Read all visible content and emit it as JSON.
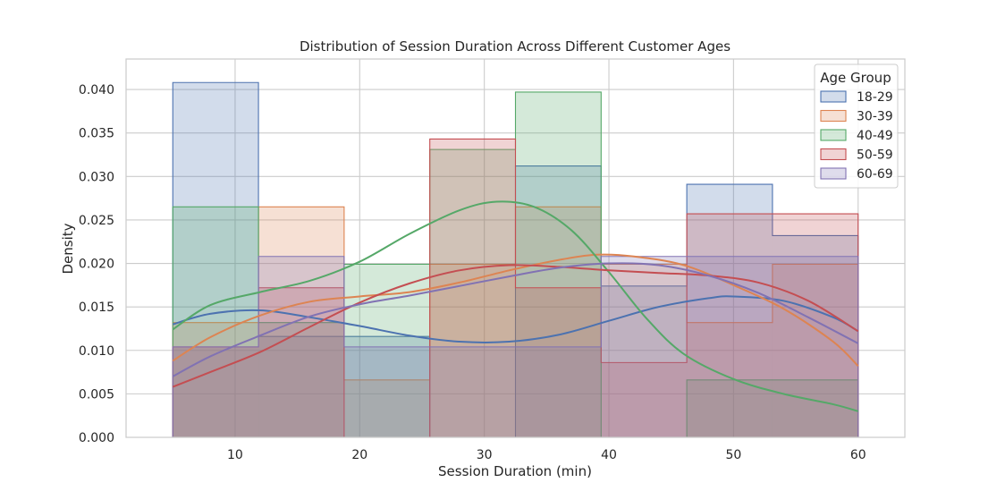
{
  "chart_data": {
    "type": "histogram",
    "title": "Distribution of Session Duration Across Different Customer Ages",
    "xlabel": "Session Duration (min)",
    "ylabel": "Density",
    "xlim": [
      1.25,
      63.75
    ],
    "ylim": [
      0,
      0.0435
    ],
    "xticks": [
      10,
      20,
      30,
      40,
      50,
      60
    ],
    "yticks": [
      0.0,
      0.005,
      0.01,
      0.015,
      0.02,
      0.025,
      0.03,
      0.035,
      0.04
    ],
    "ytick_labels": [
      "0.000",
      "0.005",
      "0.010",
      "0.015",
      "0.020",
      "0.025",
      "0.030",
      "0.035",
      "0.040"
    ],
    "grid": true,
    "bin_edges": [
      5,
      11.875,
      18.75,
      25.625,
      32.5,
      39.375,
      46.25,
      53.125,
      60
    ],
    "legend": {
      "title": "Age Group",
      "position": "upper-right"
    },
    "series": [
      {
        "name": "18-29",
        "color": "#4c72b0",
        "values": [
          0.0408,
          0.0116,
          0.0116,
          0.0,
          0.0312,
          0.0174,
          0.0291,
          0.0232
        ],
        "kde": [
          [
            5,
            0.013
          ],
          [
            8,
            0.0142
          ],
          [
            12,
            0.0146
          ],
          [
            16,
            0.0138
          ],
          [
            20,
            0.0128
          ],
          [
            24,
            0.0117
          ],
          [
            28,
            0.011
          ],
          [
            32,
            0.011
          ],
          [
            36,
            0.0118
          ],
          [
            40,
            0.0134
          ],
          [
            44,
            0.015
          ],
          [
            48,
            0.016
          ],
          [
            50,
            0.0162
          ],
          [
            54,
            0.0157
          ],
          [
            58,
            0.0138
          ],
          [
            60,
            0.0122
          ]
        ]
      },
      {
        "name": "30-39",
        "color": "#dd8452",
        "values": [
          0.0132,
          0.0265,
          0.0066,
          0.0199,
          0.0265,
          0.0199,
          0.0132,
          0.0199
        ],
        "kde": [
          [
            5,
            0.0088
          ],
          [
            8,
            0.0115
          ],
          [
            12,
            0.014
          ],
          [
            16,
            0.0156
          ],
          [
            20,
            0.0162
          ],
          [
            24,
            0.0167
          ],
          [
            28,
            0.0178
          ],
          [
            32,
            0.0192
          ],
          [
            36,
            0.0204
          ],
          [
            39,
            0.021
          ],
          [
            42,
            0.0208
          ],
          [
            46,
            0.0198
          ],
          [
            50,
            0.0175
          ],
          [
            54,
            0.0148
          ],
          [
            58,
            0.011
          ],
          [
            60,
            0.0082
          ]
        ]
      },
      {
        "name": "40-49",
        "color": "#55a868",
        "values": [
          0.0265,
          0.0132,
          0.0199,
          0.0331,
          0.0397,
          0.0,
          0.0066,
          0.0066
        ],
        "kde": [
          [
            5,
            0.0124
          ],
          [
            8,
            0.0152
          ],
          [
            12,
            0.0167
          ],
          [
            16,
            0.018
          ],
          [
            20,
            0.0202
          ],
          [
            24,
            0.0234
          ],
          [
            28,
            0.0261
          ],
          [
            31,
            0.0271
          ],
          [
            34,
            0.0265
          ],
          [
            37,
            0.0238
          ],
          [
            40,
            0.019
          ],
          [
            43,
            0.0137
          ],
          [
            46,
            0.0096
          ],
          [
            50,
            0.0067
          ],
          [
            54,
            0.005
          ],
          [
            58,
            0.0038
          ],
          [
            60,
            0.003
          ]
        ]
      },
      {
        "name": "50-59",
        "color": "#c44e52",
        "values": [
          0.0104,
          0.0172,
          0.0,
          0.0343,
          0.0172,
          0.0086,
          0.0257,
          0.0257
        ],
        "kde": [
          [
            5,
            0.0058
          ],
          [
            8,
            0.0075
          ],
          [
            12,
            0.0098
          ],
          [
            16,
            0.0127
          ],
          [
            20,
            0.0155
          ],
          [
            24,
            0.0177
          ],
          [
            28,
            0.0192
          ],
          [
            32,
            0.0198
          ],
          [
            36,
            0.0196
          ],
          [
            40,
            0.0192
          ],
          [
            44,
            0.0189
          ],
          [
            48,
            0.0186
          ],
          [
            52,
            0.0178
          ],
          [
            56,
            0.0157
          ],
          [
            60,
            0.0122
          ]
        ]
      },
      {
        "name": "60-69",
        "color": "#8172b3",
        "values": [
          0.0104,
          0.0208,
          0.0104,
          0.0104,
          0.0104,
          0.0208,
          0.0208,
          0.0208
        ],
        "kde": [
          [
            5,
            0.007
          ],
          [
            8,
            0.0093
          ],
          [
            12,
            0.0117
          ],
          [
            16,
            0.0139
          ],
          [
            20,
            0.0153
          ],
          [
            24,
            0.0163
          ],
          [
            28,
            0.0174
          ],
          [
            32,
            0.0185
          ],
          [
            36,
            0.0195
          ],
          [
            40,
            0.02
          ],
          [
            44,
            0.0198
          ],
          [
            48,
            0.0186
          ],
          [
            52,
            0.0166
          ],
          [
            56,
            0.0138
          ],
          [
            60,
            0.0108
          ]
        ]
      }
    ]
  }
}
